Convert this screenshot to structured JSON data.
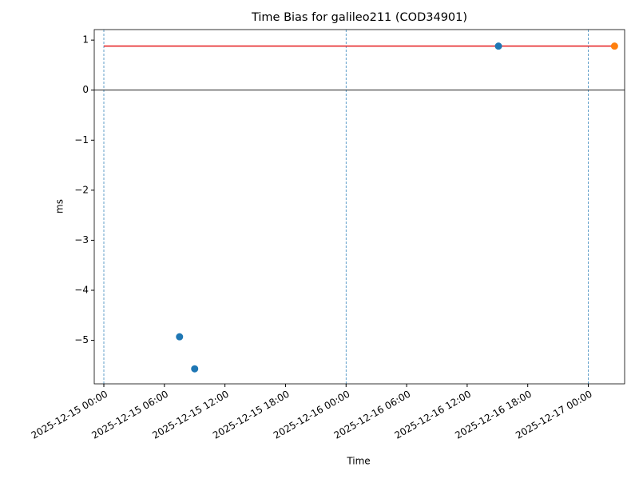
{
  "chart_data": {
    "type": "scatter",
    "title": "Time Bias for galileo211 (COD34901)",
    "x_label": "Time",
    "y_label": "ms",
    "xlim": [
      "2025-12-14 23:03",
      "2025-12-17 03:36"
    ],
    "xticks": [
      "2025-12-15 00:00",
      "2025-12-15 06:00",
      "2025-12-15 12:00",
      "2025-12-15 18:00",
      "2025-12-16 00:00",
      "2025-12-16 06:00",
      "2025-12-16 12:00",
      "2025-12-16 18:00",
      "2025-12-17 00:00"
    ],
    "ylim": [
      -5.87,
      1.21
    ],
    "yticks": [
      1,
      0,
      {
        "value": -1,
        "label": "−1"
      },
      {
        "value": -2,
        "label": "−2"
      },
      {
        "value": -3,
        "label": "−3"
      },
      {
        "value": -4,
        "label": "−4"
      },
      {
        "value": -5,
        "label": "−5"
      }
    ],
    "hline": 0,
    "vlines": [
      "2025-12-15 00:00",
      "2025-12-16 00:00",
      "2025-12-17 00:00"
    ],
    "vline_color": "#1f77b4",
    "series": [
      {
        "type": "scatter",
        "color": "#1f77b4",
        "x": [
          "2025-12-15 07:30",
          "2025-12-15 09:00",
          "2025-12-16 15:06"
        ],
        "values": [
          -4.93,
          -5.57,
          0.88
        ]
      },
      {
        "type": "scatter",
        "color": "#ff7f0e",
        "x": [
          "2025-12-17 02:36"
        ],
        "values": [
          0.88
        ]
      },
      {
        "type": "line",
        "color": "#e41a1c",
        "x": [
          "2025-12-15 00:00",
          "2025-12-17 02:36"
        ],
        "values": [
          0.88,
          0.88
        ]
      }
    ]
  }
}
